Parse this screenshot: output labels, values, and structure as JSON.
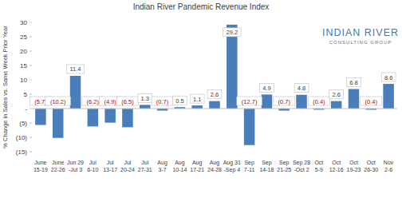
{
  "chart_data": {
    "type": "bar",
    "title": "Indian River Pandemic Revenue Index",
    "y_label": "% Change in Sales vs. Same Week Prior Year",
    "logo": {
      "name": "INDIAN RIVER",
      "subtitle": "CONSULTING GROUP"
    },
    "categories": [
      "June\n15-19",
      "June\n22-26",
      "Jun 29\n-Jul 3",
      "Jul\n6-10",
      "Jul\n13-17",
      "Jul\n20-24",
      "Jul\n27-31",
      "Aug\n3-7",
      "Aug\n10-14",
      "Aug\n17-21",
      "Aug\n24-28",
      "Aug 31\n-Sep 4",
      "Sep\n7-11",
      "Sep\n14-18",
      "Sep\n21-25",
      "Sep 28\n-Oct 2",
      "Oct\n5-9",
      "Oct\n12-16",
      "Oct\n19-23",
      "Oct\n26-30",
      "Nov\n2-6"
    ],
    "values": [
      -5.7,
      -10.2,
      11.4,
      -6.2,
      -4.9,
      -6.5,
      1.3,
      -0.7,
      0.5,
      1.1,
      2.6,
      29.2,
      -12.7,
      4.9,
      -0.7,
      4.8,
      -0.4,
      2.6,
      6.8,
      -0.4,
      8.6
    ],
    "value_labels": [
      "(5.7)",
      "(10.2)",
      "11.4",
      "(6.2)",
      "(4.9)",
      "(6.5)",
      "1.3",
      "(0.7)",
      "0.5",
      "1.1",
      "2.6",
      "29.2",
      "(12.7)",
      "4.9",
      "(0.7)",
      "4.8",
      "(0.4)",
      "2.6",
      "6.8",
      "(0.4)",
      "8.6"
    ],
    "color": "#4a7ebb",
    "ylim": [
      -15,
      30
    ],
    "yticks": [
      {
        "value": -15,
        "label": "(15)"
      },
      {
        "value": -10,
        "label": "(10)"
      },
      {
        "value": -5,
        "label": "(5)"
      },
      {
        "value": 0,
        "label": "-"
      },
      5,
      10,
      15,
      20,
      25,
      30
    ],
    "grid": false,
    "data_labels": true
  }
}
